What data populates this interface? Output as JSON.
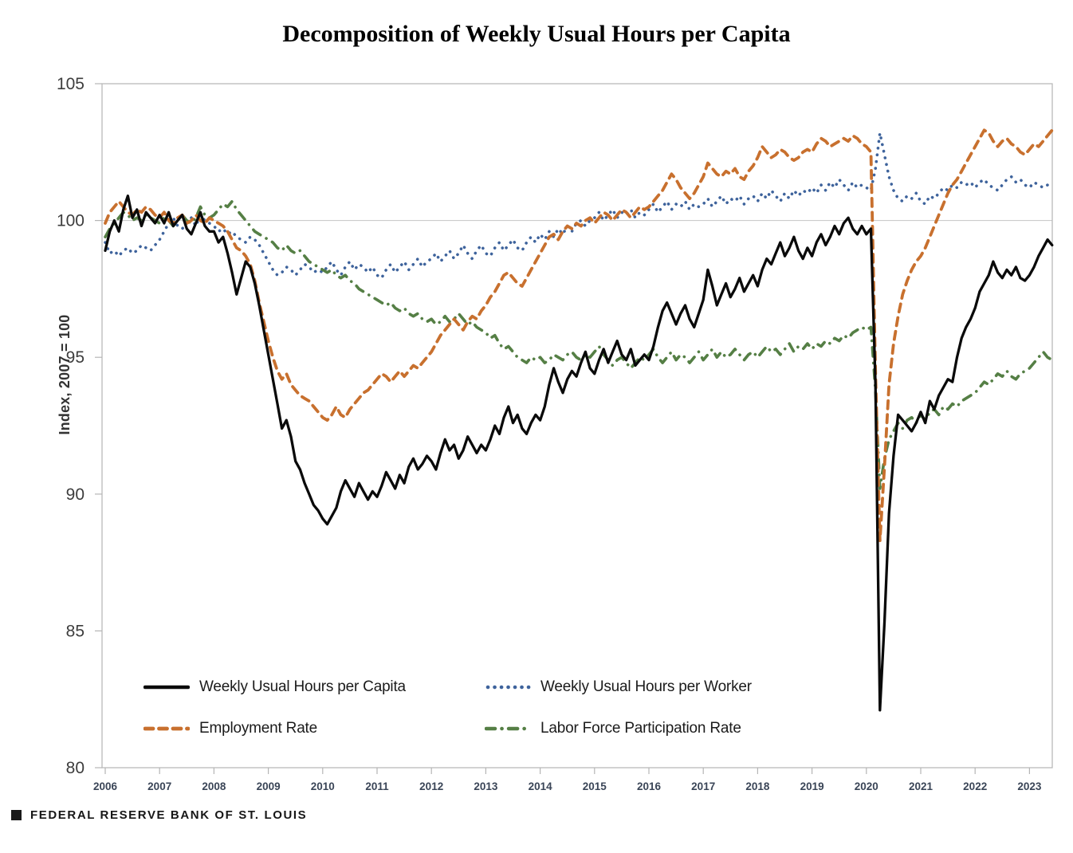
{
  "title": "Decomposition of Weekly Usual Hours per Capita",
  "y_axis": {
    "label": "Index, 2007 = 100",
    "ticks": [
      105,
      100,
      95,
      90,
      85,
      80
    ]
  },
  "x_axis": {
    "ticks": [
      "2006",
      "2007",
      "2008",
      "2009",
      "2010",
      "2011",
      "2012",
      "2013",
      "2014",
      "2015",
      "2016",
      "2017",
      "2018",
      "2019",
      "2020",
      "2021",
      "2022",
      "2023"
    ]
  },
  "legend": [
    {
      "label": "Weekly Usual Hours per Capita",
      "series_key": "capita"
    },
    {
      "label": "Weekly Usual Hours per Worker",
      "series_key": "worker"
    },
    {
      "label": "Employment Rate",
      "series_key": "employment"
    },
    {
      "label": "Labor Force Participation Rate",
      "series_key": "lfpr"
    }
  ],
  "footer": {
    "text": "FEDERAL RESERVE BANK OF ST. LOUIS"
  },
  "colors": {
    "capita": "#0a0a0a",
    "worker": "#3E639C",
    "employment": "#C8702E",
    "lfpr": "#557F45",
    "axis": "#b5b5b5",
    "gridline": "#cccccc",
    "y_tick_text": "#3d3d3d",
    "x_tick_text": "#3a4557"
  },
  "chart_data": {
    "type": "line",
    "title": "Decomposition of Weekly Usual Hours per Capita",
    "xlabel": "",
    "ylabel": "Index, 2007 = 100",
    "ylim": [
      80,
      105
    ],
    "xlim_years": [
      2006,
      2023.5
    ],
    "x_start_year": 2006,
    "x_step_months": 1,
    "grid": "single horizontal gridline at y=100",
    "legend_position": "inside bottom-left, two columns",
    "series": [
      {
        "name": "Weekly Usual Hours per Capita",
        "key": "capita",
        "color": "#0a0a0a",
        "line_style": "solid",
        "values": [
          98.9,
          99.6,
          100.0,
          99.6,
          100.4,
          100.9,
          100.1,
          100.4,
          99.8,
          100.3,
          100.1,
          99.9,
          100.2,
          99.9,
          100.3,
          99.8,
          100.0,
          100.2,
          99.7,
          99.5,
          99.9,
          100.3,
          99.8,
          99.6,
          99.6,
          99.2,
          99.4,
          98.8,
          98.1,
          97.3,
          97.9,
          98.5,
          98.3,
          97.7,
          96.9,
          96.0,
          95.1,
          94.2,
          93.3,
          92.4,
          92.7,
          92.1,
          91.2,
          90.9,
          90.4,
          90.0,
          89.6,
          89.4,
          89.1,
          88.9,
          89.2,
          89.5,
          90.1,
          90.5,
          90.2,
          89.9,
          90.4,
          90.1,
          89.8,
          90.1,
          89.9,
          90.3,
          90.8,
          90.5,
          90.2,
          90.7,
          90.4,
          91.0,
          91.3,
          90.9,
          91.1,
          91.4,
          91.2,
          90.9,
          91.5,
          92.0,
          91.6,
          91.8,
          91.3,
          91.6,
          92.1,
          91.8,
          91.5,
          91.8,
          91.6,
          92.0,
          92.5,
          92.2,
          92.8,
          93.2,
          92.6,
          92.9,
          92.4,
          92.2,
          92.6,
          92.9,
          92.7,
          93.2,
          94.0,
          94.6,
          94.1,
          93.7,
          94.2,
          94.5,
          94.3,
          94.8,
          95.2,
          94.6,
          94.4,
          94.9,
          95.3,
          94.8,
          95.2,
          95.6,
          95.1,
          94.9,
          95.3,
          94.7,
          94.9,
          95.1,
          94.9,
          95.4,
          96.1,
          96.7,
          97.0,
          96.6,
          96.2,
          96.6,
          96.9,
          96.4,
          96.1,
          96.6,
          97.1,
          98.2,
          97.6,
          96.9,
          97.3,
          97.7,
          97.2,
          97.5,
          97.9,
          97.4,
          97.7,
          98.0,
          97.6,
          98.2,
          98.6,
          98.4,
          98.8,
          99.2,
          98.7,
          99.0,
          99.4,
          98.9,
          98.6,
          99.0,
          98.7,
          99.2,
          99.5,
          99.1,
          99.4,
          99.8,
          99.5,
          99.9,
          100.1,
          99.7,
          99.5,
          99.8,
          99.5,
          99.7,
          94.0,
          82.1,
          85.3,
          89.3,
          91.4,
          92.9,
          92.7,
          92.5,
          92.3,
          92.6,
          93.0,
          92.6,
          93.4,
          93.1,
          93.6,
          93.9,
          94.2,
          94.1,
          95.0,
          95.7,
          96.1,
          96.4,
          96.8,
          97.4,
          97.7,
          98.0,
          98.5,
          98.1,
          97.9,
          98.2,
          98.0,
          98.3,
          97.9,
          97.8,
          98.0,
          98.3,
          98.7,
          99.0,
          99.3,
          99.1
        ]
      },
      {
        "name": "Weekly Usual Hours per Worker",
        "key": "worker",
        "color": "#3E639C",
        "line_style": "dotted",
        "values": [
          99.2,
          98.8,
          98.9,
          98.7,
          98.9,
          99.0,
          98.8,
          98.9,
          99.1,
          99.0,
          98.9,
          99.1,
          99.3,
          99.6,
          99.9,
          100.1,
          99.8,
          99.7,
          99.9,
          100.1,
          99.8,
          100.2,
          100.0,
          99.9,
          99.8,
          99.6,
          99.7,
          99.5,
          99.6,
          99.4,
          99.3,
          99.2,
          99.4,
          99.3,
          99.1,
          98.8,
          98.5,
          98.2,
          98.0,
          98.1,
          98.3,
          98.2,
          98.0,
          98.2,
          98.4,
          98.3,
          98.1,
          98.2,
          98.1,
          98.3,
          98.5,
          98.2,
          98.0,
          98.3,
          98.5,
          98.2,
          98.4,
          98.3,
          98.1,
          98.3,
          98.0,
          97.9,
          98.2,
          98.4,
          98.1,
          98.3,
          98.5,
          98.2,
          98.4,
          98.6,
          98.3,
          98.5,
          98.6,
          98.8,
          98.5,
          98.7,
          98.9,
          98.6,
          98.8,
          99.1,
          98.8,
          98.6,
          98.9,
          99.1,
          98.8,
          98.7,
          99.0,
          99.2,
          98.9,
          99.1,
          99.3,
          99.0,
          98.9,
          99.2,
          99.4,
          99.2,
          99.5,
          99.3,
          99.6,
          99.4,
          99.7,
          99.5,
          99.8,
          99.6,
          99.9,
          100.0,
          99.8,
          100.0,
          100.1,
          100.3,
          100.0,
          100.2,
          100.4,
          100.1,
          100.3,
          100.2,
          100.4,
          100.1,
          100.3,
          100.2,
          100.4,
          100.6,
          100.3,
          100.5,
          100.7,
          100.4,
          100.6,
          100.5,
          100.7,
          100.4,
          100.6,
          100.5,
          100.6,
          100.8,
          100.5,
          100.7,
          100.9,
          100.6,
          100.8,
          100.7,
          100.9,
          100.6,
          100.8,
          100.9,
          100.7,
          101.0,
          100.8,
          101.1,
          100.9,
          100.7,
          101.0,
          100.8,
          101.1,
          100.9,
          101.1,
          101.0,
          101.2,
          101.0,
          101.3,
          101.1,
          101.4,
          101.2,
          101.5,
          101.3,
          101.1,
          101.4,
          101.2,
          101.3,
          101.2,
          101.1,
          101.9,
          103.2,
          102.4,
          101.6,
          101.1,
          100.8,
          100.7,
          100.9,
          100.8,
          101.0,
          100.7,
          100.6,
          100.9,
          100.8,
          101.0,
          101.2,
          101.1,
          101.3,
          101.2,
          101.4,
          101.3,
          101.4,
          101.2,
          101.4,
          101.5,
          101.3,
          101.2,
          101.1,
          101.3,
          101.5,
          101.6,
          101.4,
          101.5,
          101.3,
          101.2,
          101.4,
          101.3,
          101.2,
          101.3,
          101.2
        ]
      },
      {
        "name": "Employment Rate",
        "key": "employment",
        "color": "#C8702E",
        "line_style": "dashed",
        "values": [
          99.9,
          100.3,
          100.5,
          100.7,
          100.5,
          100.3,
          100.2,
          100.4,
          100.3,
          100.5,
          100.4,
          100.2,
          100.1,
          100.3,
          100.0,
          99.9,
          100.1,
          100.2,
          99.9,
          100.0,
          100.2,
          100.0,
          99.9,
          100.1,
          100.0,
          99.9,
          99.8,
          99.6,
          99.3,
          99.0,
          98.9,
          98.7,
          98.4,
          97.8,
          97.0,
          96.3,
          95.6,
          95.0,
          94.5,
          94.2,
          94.4,
          94.0,
          93.8,
          93.6,
          93.5,
          93.4,
          93.2,
          93.0,
          92.8,
          92.7,
          92.9,
          93.2,
          92.9,
          92.8,
          93.1,
          93.3,
          93.5,
          93.7,
          93.8,
          94.0,
          94.2,
          94.4,
          94.3,
          94.1,
          94.3,
          94.5,
          94.3,
          94.5,
          94.7,
          94.6,
          94.8,
          95.0,
          95.2,
          95.5,
          95.8,
          96.0,
          96.2,
          96.4,
          96.2,
          96.0,
          96.3,
          96.5,
          96.4,
          96.7,
          96.9,
          97.2,
          97.4,
          97.7,
          98.0,
          98.1,
          97.9,
          97.7,
          97.6,
          97.9,
          98.2,
          98.5,
          98.8,
          99.1,
          99.4,
          99.5,
          99.3,
          99.6,
          99.8,
          99.7,
          99.9,
          99.8,
          100.0,
          100.1,
          99.9,
          100.1,
          100.3,
          100.2,
          100.0,
          100.2,
          100.4,
          100.3,
          100.1,
          100.3,
          100.5,
          100.4,
          100.5,
          100.7,
          100.9,
          101.1,
          101.4,
          101.7,
          101.5,
          101.2,
          101.0,
          100.8,
          101.0,
          101.3,
          101.6,
          102.1,
          101.9,
          101.7,
          101.6,
          101.8,
          101.7,
          101.9,
          101.6,
          101.5,
          101.8,
          102.0,
          102.3,
          102.7,
          102.5,
          102.3,
          102.4,
          102.6,
          102.5,
          102.3,
          102.2,
          102.3,
          102.5,
          102.6,
          102.5,
          102.8,
          103.0,
          102.9,
          102.7,
          102.8,
          102.9,
          103.0,
          102.9,
          103.1,
          103.0,
          102.8,
          102.7,
          102.5,
          94.5,
          88.3,
          91.0,
          94.0,
          95.5,
          96.5,
          97.3,
          97.8,
          98.2,
          98.5,
          98.7,
          99.0,
          99.4,
          99.8,
          100.2,
          100.6,
          101.0,
          101.3,
          101.5,
          101.8,
          102.1,
          102.4,
          102.7,
          103.0,
          103.3,
          103.2,
          102.9,
          102.7,
          102.9,
          103.0,
          102.8,
          102.7,
          102.5,
          102.4,
          102.6,
          102.8,
          102.7,
          102.9,
          103.1,
          103.3
        ]
      },
      {
        "name": "Labor Force Participation Rate",
        "key": "lfpr",
        "color": "#557F45",
        "line_style": "dashdot",
        "values": [
          99.4,
          99.7,
          99.9,
          100.1,
          100.3,
          100.2,
          100.0,
          100.1,
          100.0,
          100.2,
          100.1,
          100.0,
          99.9,
          100.1,
          100.0,
          99.8,
          100.0,
          100.2,
          100.0,
          99.9,
          100.1,
          100.5,
          100.2,
          100.1,
          100.2,
          100.4,
          100.6,
          100.5,
          100.7,
          100.4,
          100.2,
          100.0,
          99.8,
          99.6,
          99.5,
          99.4,
          99.3,
          99.2,
          99.0,
          98.9,
          99.1,
          98.9,
          98.8,
          98.9,
          98.7,
          98.5,
          98.4,
          98.3,
          98.2,
          98.1,
          98.2,
          98.0,
          97.9,
          98.0,
          97.8,
          97.7,
          97.5,
          97.4,
          97.3,
          97.2,
          97.1,
          97.0,
          96.9,
          97.0,
          96.8,
          96.7,
          96.8,
          96.6,
          96.5,
          96.6,
          96.4,
          96.3,
          96.4,
          96.2,
          96.3,
          96.5,
          96.3,
          96.4,
          96.6,
          96.4,
          96.2,
          96.3,
          96.1,
          96.0,
          95.9,
          95.7,
          95.8,
          95.5,
          95.3,
          95.4,
          95.2,
          95.0,
          94.9,
          94.8,
          95.0,
          94.9,
          95.0,
          94.8,
          94.9,
          95.1,
          95.0,
          94.9,
          95.1,
          95.2,
          95.0,
          94.9,
          95.1,
          95.0,
          95.2,
          95.4,
          95.1,
          94.9,
          94.7,
          94.9,
          95.0,
          94.8,
          94.6,
          94.8,
          95.0,
          94.9,
          95.1,
          95.3,
          95.0,
          94.8,
          95.0,
          95.2,
          94.9,
          95.1,
          95.0,
          94.8,
          95.0,
          95.2,
          94.9,
          95.1,
          95.3,
          95.0,
          95.2,
          95.0,
          95.1,
          95.3,
          95.1,
          94.9,
          95.1,
          95.2,
          95.0,
          95.2,
          95.4,
          95.2,
          95.3,
          95.1,
          95.3,
          95.5,
          95.2,
          95.4,
          95.3,
          95.5,
          95.3,
          95.5,
          95.4,
          95.6,
          95.5,
          95.7,
          95.6,
          95.8,
          95.7,
          95.9,
          96.0,
          96.1,
          96.0,
          96.1,
          93.8,
          90.2,
          91.3,
          92.0,
          92.3,
          92.6,
          92.4,
          92.7,
          92.8,
          92.6,
          92.9,
          92.7,
          93.0,
          93.1,
          92.9,
          93.2,
          93.1,
          93.3,
          93.2,
          93.4,
          93.5,
          93.6,
          93.7,
          93.9,
          94.1,
          94.0,
          94.2,
          94.4,
          94.3,
          94.5,
          94.3,
          94.2,
          94.4,
          94.5,
          94.6,
          94.8,
          95.0,
          95.2,
          95.0,
          94.9
        ]
      }
    ]
  }
}
